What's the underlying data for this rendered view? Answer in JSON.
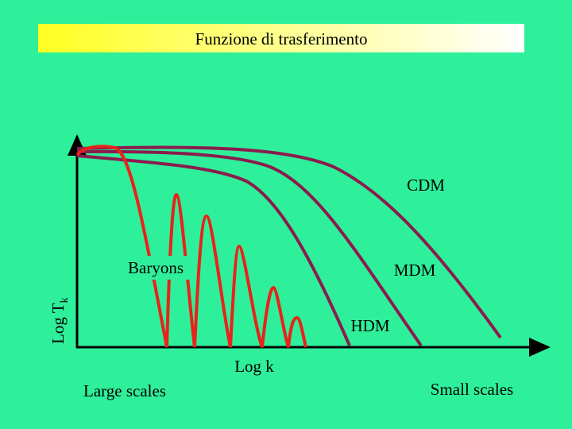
{
  "title": "Funzione di trasferimento",
  "curves": {
    "cdm": "CDM",
    "mdm": "MDM",
    "hdm": "HDM",
    "baryons": "Baryons"
  },
  "y_label": {
    "main": "Log T",
    "subscript": "k"
  },
  "x_label": "Log k",
  "x_left": "Large scales",
  "x_right": "Small scales"
}
